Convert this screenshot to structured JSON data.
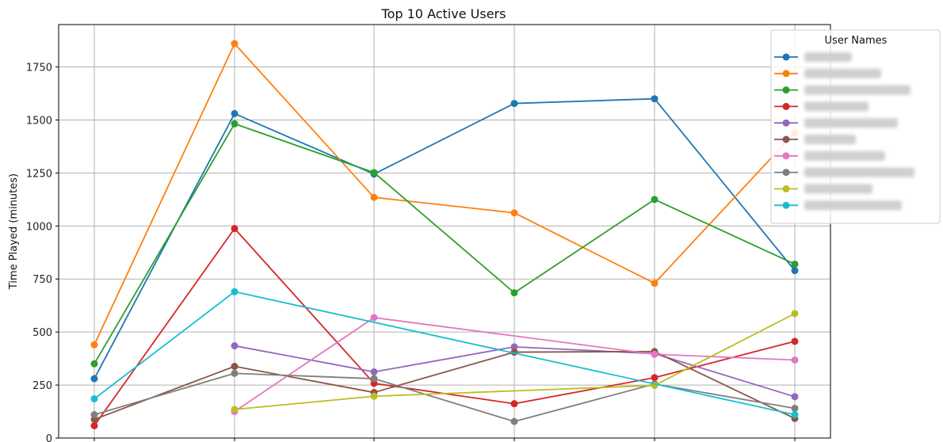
{
  "chart_data": {
    "type": "line",
    "title": "Top 10 Active Users",
    "xlabel": "",
    "ylabel": "Time Played (minutes)",
    "ylim": [
      0,
      1950
    ],
    "yticks": [
      0,
      250,
      500,
      750,
      1000,
      1250,
      1500,
      1750
    ],
    "x": [
      0,
      1,
      2,
      3,
      4,
      5
    ],
    "grid": true,
    "legend": {
      "title": "User Names",
      "placement": "right"
    },
    "series": [
      {
        "name": "",
        "color": "#1f77b4",
        "values": [
          280,
          1530,
          1245,
          1578,
          1600,
          790
        ]
      },
      {
        "name": "",
        "color": "#ff7f0e",
        "values": [
          440,
          1860,
          1135,
          1062,
          730,
          1440
        ]
      },
      {
        "name": "",
        "color": "#2ca02c",
        "values": [
          350,
          1482,
          1252,
          685,
          1125,
          820
        ]
      },
      {
        "name": "",
        "color": "#d62728",
        "values": [
          58,
          988,
          258,
          162,
          285,
          456
        ]
      },
      {
        "name": "",
        "color": "#9467bd",
        "values": [
          null,
          435,
          312,
          430,
          398,
          195
        ]
      },
      {
        "name": "",
        "color": "#8c564b",
        "values": [
          88,
          338,
          215,
          405,
          408,
          92
        ]
      },
      {
        "name": "",
        "color": "#e377c2",
        "values": [
          null,
          125,
          568,
          null,
          395,
          368
        ]
      },
      {
        "name": "",
        "color": "#7f7f7f",
        "values": [
          110,
          305,
          280,
          78,
          255,
          140
        ]
      },
      {
        "name": "",
        "color": "#bcbd22",
        "values": [
          null,
          135,
          197,
          null,
          248,
          587
        ]
      },
      {
        "name": "",
        "color": "#17becf",
        "values": [
          185,
          690,
          null,
          null,
          null,
          110
        ]
      }
    ]
  }
}
